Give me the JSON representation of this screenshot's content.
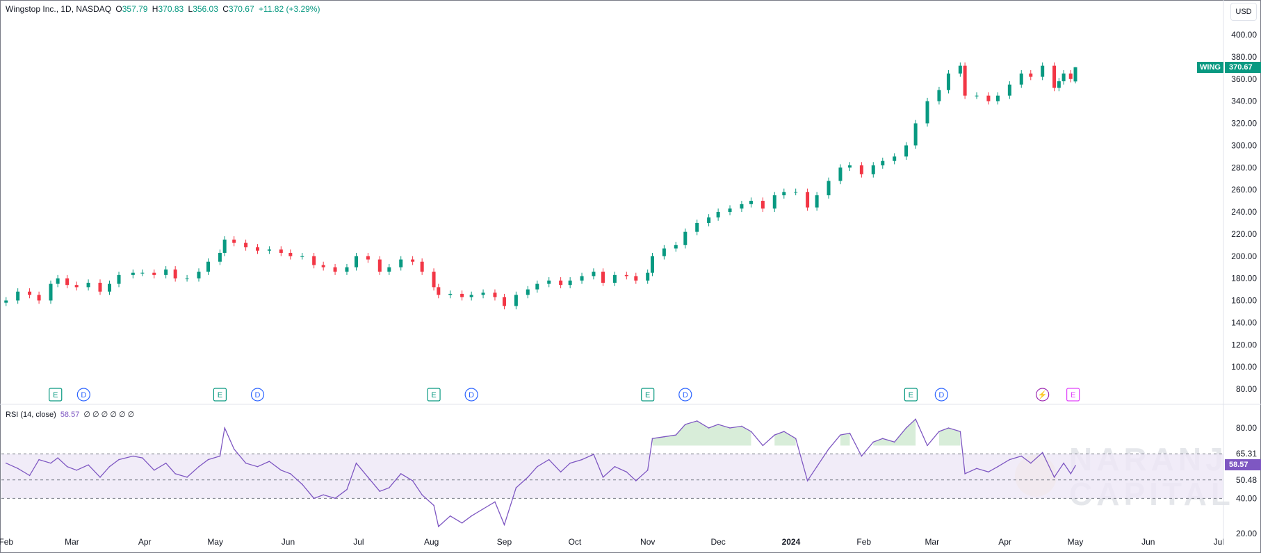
{
  "header": {
    "symbol_text": "Wingstop Inc., 1D, NASDAQ",
    "o_label": "O",
    "o_value": "357.79",
    "h_label": "H",
    "h_value": "370.83",
    "l_label": "L",
    "l_value": "356.03",
    "c_label": "C",
    "c_value": "370.67",
    "change": "+11.82 (+3.29%)"
  },
  "currency_button": "USD",
  "price_badge": {
    "ticker": "WING",
    "price": "370.67"
  },
  "rsi_header": {
    "label": "RSI (14, close)",
    "value": "58.57",
    "extras": "∅ ∅ ∅ ∅ ∅ ∅"
  },
  "rsi_badge": "58.57",
  "watermark": {
    "line1": "NARANJ",
    "line2": "CAPITAL"
  },
  "colors": {
    "up": "#089981",
    "down": "#f23645",
    "rsi_line": "#7e57c2",
    "rsi_band": "#ede7f6"
  },
  "events": [
    {
      "type": "E",
      "date": "Feb 22"
    },
    {
      "type": "D",
      "date": "Mar 6"
    },
    {
      "type": "E",
      "date": "May 3"
    },
    {
      "type": "D",
      "date": "May 19"
    },
    {
      "type": "E",
      "date": "Aug 2"
    },
    {
      "type": "D",
      "date": "Aug 18"
    },
    {
      "type": "E",
      "date": "Nov 1"
    },
    {
      "type": "D",
      "date": "Nov 17"
    },
    {
      "type": "E",
      "date": "Feb 21"
    },
    {
      "type": "D",
      "date": "Mar 5"
    },
    {
      "type": "split",
      "date": "Apr 17"
    },
    {
      "type": "E",
      "date": "Apr 30"
    }
  ],
  "chart_data": [
    {
      "type": "candlestick",
      "title": "Wingstop Inc., 1D, NASDAQ",
      "ylim": [
        70,
        410
      ],
      "y_ticks": [
        "400.00",
        "380.00",
        "360.00",
        "340.00",
        "320.00",
        "300.00",
        "280.00",
        "260.00",
        "240.00",
        "220.00",
        "200.00",
        "180.00",
        "160.00",
        "140.00",
        "120.00",
        "100.00",
        "80.00"
      ],
      "x_ticks": [
        "Feb",
        "Mar",
        "Apr",
        "May",
        "Jun",
        "Jul",
        "Aug",
        "Sep",
        "Oct",
        "Nov",
        "Dec",
        "2024",
        "Feb",
        "Mar",
        "Apr",
        "May",
        "Jun",
        "Jul"
      ],
      "grid": false,
      "series": [
        {
          "x": "2023-02-01",
          "close": 160
        },
        {
          "x": "2023-02-06",
          "close": 168
        },
        {
          "x": "2023-02-11",
          "close": 165
        },
        {
          "x": "2023-02-15",
          "close": 160
        },
        {
          "x": "2023-02-20",
          "close": 175
        },
        {
          "x": "2023-02-23",
          "close": 180
        },
        {
          "x": "2023-02-27",
          "close": 174
        },
        {
          "x": "2023-03-03",
          "close": 172
        },
        {
          "x": "2023-03-08",
          "close": 176
        },
        {
          "x": "2023-03-13",
          "close": 168
        },
        {
          "x": "2023-03-17",
          "close": 175
        },
        {
          "x": "2023-03-21",
          "close": 183
        },
        {
          "x": "2023-03-27",
          "close": 185
        },
        {
          "x": "2023-03-31",
          "close": 185
        },
        {
          "x": "2023-04-05",
          "close": 183
        },
        {
          "x": "2023-04-10",
          "close": 188
        },
        {
          "x": "2023-04-14",
          "close": 180
        },
        {
          "x": "2023-04-19",
          "close": 180
        },
        {
          "x": "2023-04-24",
          "close": 186
        },
        {
          "x": "2023-04-28",
          "close": 195
        },
        {
          "x": "2023-05-03",
          "close": 203
        },
        {
          "x": "2023-05-05",
          "close": 215
        },
        {
          "x": "2023-05-09",
          "close": 212
        },
        {
          "x": "2023-05-14",
          "close": 208
        },
        {
          "x": "2023-05-19",
          "close": 205
        },
        {
          "x": "2023-05-24",
          "close": 206
        },
        {
          "x": "2023-05-29",
          "close": 203
        },
        {
          "x": "2023-06-02",
          "close": 200
        },
        {
          "x": "2023-06-07",
          "close": 200
        },
        {
          "x": "2023-06-12",
          "close": 192
        },
        {
          "x": "2023-06-16",
          "close": 190
        },
        {
          "x": "2023-06-21",
          "close": 186
        },
        {
          "x": "2023-06-26",
          "close": 190
        },
        {
          "x": "2023-06-30",
          "close": 200
        },
        {
          "x": "2023-07-05",
          "close": 197
        },
        {
          "x": "2023-07-10",
          "close": 186
        },
        {
          "x": "2023-07-14",
          "close": 190
        },
        {
          "x": "2023-07-19",
          "close": 197
        },
        {
          "x": "2023-07-24",
          "close": 195
        },
        {
          "x": "2023-07-28",
          "close": 186
        },
        {
          "x": "2023-08-02",
          "close": 172
        },
        {
          "x": "2023-08-04",
          "close": 165
        },
        {
          "x": "2023-08-09",
          "close": 166
        },
        {
          "x": "2023-08-14",
          "close": 163
        },
        {
          "x": "2023-08-18",
          "close": 165
        },
        {
          "x": "2023-08-23",
          "close": 167
        },
        {
          "x": "2023-08-28",
          "close": 163
        },
        {
          "x": "2023-09-01",
          "close": 155
        },
        {
          "x": "2023-09-06",
          "close": 165
        },
        {
          "x": "2023-09-11",
          "close": 170
        },
        {
          "x": "2023-09-15",
          "close": 175
        },
        {
          "x": "2023-09-20",
          "close": 178
        },
        {
          "x": "2023-09-25",
          "close": 174
        },
        {
          "x": "2023-09-29",
          "close": 178
        },
        {
          "x": "2023-10-04",
          "close": 182
        },
        {
          "x": "2023-10-09",
          "close": 186
        },
        {
          "x": "2023-10-13",
          "close": 176
        },
        {
          "x": "2023-10-18",
          "close": 183
        },
        {
          "x": "2023-10-23",
          "close": 182
        },
        {
          "x": "2023-10-27",
          "close": 178
        },
        {
          "x": "2023-11-01",
          "close": 185
        },
        {
          "x": "2023-11-03",
          "close": 200
        },
        {
          "x": "2023-11-08",
          "close": 207
        },
        {
          "x": "2023-11-13",
          "close": 210
        },
        {
          "x": "2023-11-17",
          "close": 222
        },
        {
          "x": "2023-11-22",
          "close": 230
        },
        {
          "x": "2023-11-27",
          "close": 235
        },
        {
          "x": "2023-12-01",
          "close": 240
        },
        {
          "x": "2023-12-06",
          "close": 243
        },
        {
          "x": "2023-12-11",
          "close": 247
        },
        {
          "x": "2023-12-15",
          "close": 250
        },
        {
          "x": "2023-12-20",
          "close": 243
        },
        {
          "x": "2023-12-25",
          "close": 255
        },
        {
          "x": "2023-12-29",
          "close": 258
        },
        {
          "x": "2024-01-03",
          "close": 258
        },
        {
          "x": "2024-01-08",
          "close": 244
        },
        {
          "x": "2024-01-12",
          "close": 255
        },
        {
          "x": "2024-01-17",
          "close": 268
        },
        {
          "x": "2024-01-22",
          "close": 280
        },
        {
          "x": "2024-01-26",
          "close": 282
        },
        {
          "x": "2024-01-31",
          "close": 274
        },
        {
          "x": "2024-02-05",
          "close": 282
        },
        {
          "x": "2024-02-09",
          "close": 286
        },
        {
          "x": "2024-02-14",
          "close": 290
        },
        {
          "x": "2024-02-19",
          "close": 300
        },
        {
          "x": "2024-02-23",
          "close": 320
        },
        {
          "x": "2024-02-28",
          "close": 340
        },
        {
          "x": "2024-03-04",
          "close": 350
        },
        {
          "x": "2024-03-08",
          "close": 365
        },
        {
          "x": "2024-03-13",
          "close": 372
        },
        {
          "x": "2024-03-15",
          "close": 345
        },
        {
          "x": "2024-03-20",
          "close": 345
        },
        {
          "x": "2024-03-25",
          "close": 340
        },
        {
          "x": "2024-03-29",
          "close": 345
        },
        {
          "x": "2024-04-03",
          "close": 355
        },
        {
          "x": "2024-04-08",
          "close": 365
        },
        {
          "x": "2024-04-12",
          "close": 362
        },
        {
          "x": "2024-04-17",
          "close": 372
        },
        {
          "x": "2024-04-22",
          "close": 352
        },
        {
          "x": "2024-04-24",
          "close": 358
        },
        {
          "x": "2024-04-26",
          "close": 365
        },
        {
          "x": "2024-04-29",
          "close": 360
        },
        {
          "x": "2024-05-01",
          "close": 370.67
        }
      ],
      "last": {
        "open": 357.79,
        "high": 370.83,
        "low": 356.03,
        "close": 370.67
      }
    },
    {
      "type": "line",
      "title": "RSI (14, close)",
      "ylim": [
        15,
        90
      ],
      "y_ticks": [
        "80.00",
        "65.31",
        "50.48",
        "40.00",
        "20.00"
      ],
      "bands": {
        "upper": 65.31,
        "middle": 50.48,
        "lower": 40.0
      },
      "series": [
        {
          "x": "2023-02-01",
          "y": 60
        },
        {
          "x": "2023-02-06",
          "y": 57
        },
        {
          "x": "2023-02-11",
          "y": 53
        },
        {
          "x": "2023-02-15",
          "y": 62
        },
        {
          "x": "2023-02-20",
          "y": 60
        },
        {
          "x": "2023-02-23",
          "y": 63
        },
        {
          "x": "2023-02-27",
          "y": 58
        },
        {
          "x": "2023-03-03",
          "y": 56
        },
        {
          "x": "2023-03-08",
          "y": 59
        },
        {
          "x": "2023-03-13",
          "y": 52
        },
        {
          "x": "2023-03-17",
          "y": 58
        },
        {
          "x": "2023-03-21",
          "y": 62
        },
        {
          "x": "2023-03-27",
          "y": 64
        },
        {
          "x": "2023-03-31",
          "y": 63
        },
        {
          "x": "2023-04-05",
          "y": 56
        },
        {
          "x": "2023-04-10",
          "y": 60
        },
        {
          "x": "2023-04-14",
          "y": 54
        },
        {
          "x": "2023-04-19",
          "y": 52
        },
        {
          "x": "2023-04-24",
          "y": 58
        },
        {
          "x": "2023-04-28",
          "y": 62
        },
        {
          "x": "2023-05-03",
          "y": 64
        },
        {
          "x": "2023-05-05",
          "y": 80
        },
        {
          "x": "2023-05-09",
          "y": 68
        },
        {
          "x": "2023-05-14",
          "y": 60
        },
        {
          "x": "2023-05-19",
          "y": 58
        },
        {
          "x": "2023-05-24",
          "y": 61
        },
        {
          "x": "2023-05-29",
          "y": 56
        },
        {
          "x": "2023-06-02",
          "y": 54
        },
        {
          "x": "2023-06-07",
          "y": 48
        },
        {
          "x": "2023-06-12",
          "y": 40
        },
        {
          "x": "2023-06-16",
          "y": 42
        },
        {
          "x": "2023-06-21",
          "y": 40
        },
        {
          "x": "2023-06-26",
          "y": 45
        },
        {
          "x": "2023-06-30",
          "y": 60
        },
        {
          "x": "2023-07-05",
          "y": 52
        },
        {
          "x": "2023-07-10",
          "y": 44
        },
        {
          "x": "2023-07-14",
          "y": 46
        },
        {
          "x": "2023-07-19",
          "y": 54
        },
        {
          "x": "2023-07-24",
          "y": 50
        },
        {
          "x": "2023-07-28",
          "y": 42
        },
        {
          "x": "2023-08-02",
          "y": 36
        },
        {
          "x": "2023-08-04",
          "y": 24
        },
        {
          "x": "2023-08-09",
          "y": 30
        },
        {
          "x": "2023-08-14",
          "y": 26
        },
        {
          "x": "2023-08-18",
          "y": 30
        },
        {
          "x": "2023-08-23",
          "y": 34
        },
        {
          "x": "2023-08-28",
          "y": 38
        },
        {
          "x": "2023-09-01",
          "y": 25
        },
        {
          "x": "2023-09-06",
          "y": 46
        },
        {
          "x": "2023-09-11",
          "y": 52
        },
        {
          "x": "2023-09-15",
          "y": 58
        },
        {
          "x": "2023-09-20",
          "y": 62
        },
        {
          "x": "2023-09-25",
          "y": 55
        },
        {
          "x": "2023-09-29",
          "y": 60
        },
        {
          "x": "2023-10-04",
          "y": 62
        },
        {
          "x": "2023-10-09",
          "y": 65
        },
        {
          "x": "2023-10-13",
          "y": 52
        },
        {
          "x": "2023-10-18",
          "y": 58
        },
        {
          "x": "2023-10-23",
          "y": 55
        },
        {
          "x": "2023-10-27",
          "y": 50
        },
        {
          "x": "2023-11-01",
          "y": 56
        },
        {
          "x": "2023-11-03",
          "y": 74
        },
        {
          "x": "2023-11-08",
          "y": 75
        },
        {
          "x": "2023-11-13",
          "y": 76
        },
        {
          "x": "2023-11-17",
          "y": 82
        },
        {
          "x": "2023-11-22",
          "y": 84
        },
        {
          "x": "2023-11-27",
          "y": 80
        },
        {
          "x": "2023-12-01",
          "y": 82
        },
        {
          "x": "2023-12-06",
          "y": 80
        },
        {
          "x": "2023-12-11",
          "y": 81
        },
        {
          "x": "2023-12-15",
          "y": 78
        },
        {
          "x": "2023-12-20",
          "y": 70
        },
        {
          "x": "2023-12-25",
          "y": 76
        },
        {
          "x": "2023-12-29",
          "y": 78
        },
        {
          "x": "2024-01-03",
          "y": 74
        },
        {
          "x": "2024-01-08",
          "y": 50
        },
        {
          "x": "2024-01-12",
          "y": 58
        },
        {
          "x": "2024-01-17",
          "y": 68
        },
        {
          "x": "2024-01-22",
          "y": 76
        },
        {
          "x": "2024-01-26",
          "y": 77
        },
        {
          "x": "2024-01-31",
          "y": 64
        },
        {
          "x": "2024-02-05",
          "y": 72
        },
        {
          "x": "2024-02-09",
          "y": 74
        },
        {
          "x": "2024-02-14",
          "y": 72
        },
        {
          "x": "2024-02-19",
          "y": 80
        },
        {
          "x": "2024-02-23",
          "y": 85
        },
        {
          "x": "2024-02-28",
          "y": 70
        },
        {
          "x": "2024-03-04",
          "y": 78
        },
        {
          "x": "2024-03-08",
          "y": 80
        },
        {
          "x": "2024-03-13",
          "y": 78
        },
        {
          "x": "2024-03-15",
          "y": 54
        },
        {
          "x": "2024-03-20",
          "y": 57
        },
        {
          "x": "2024-03-25",
          "y": 55
        },
        {
          "x": "2024-03-29",
          "y": 58
        },
        {
          "x": "2024-04-03",
          "y": 62
        },
        {
          "x": "2024-04-08",
          "y": 64
        },
        {
          "x": "2024-04-12",
          "y": 60
        },
        {
          "x": "2024-04-17",
          "y": 66
        },
        {
          "x": "2024-04-22",
          "y": 52
        },
        {
          "x": "2024-04-24",
          "y": 56
        },
        {
          "x": "2024-04-26",
          "y": 60
        },
        {
          "x": "2024-04-29",
          "y": 54
        },
        {
          "x": "2024-05-01",
          "y": 58.57
        }
      ]
    }
  ]
}
